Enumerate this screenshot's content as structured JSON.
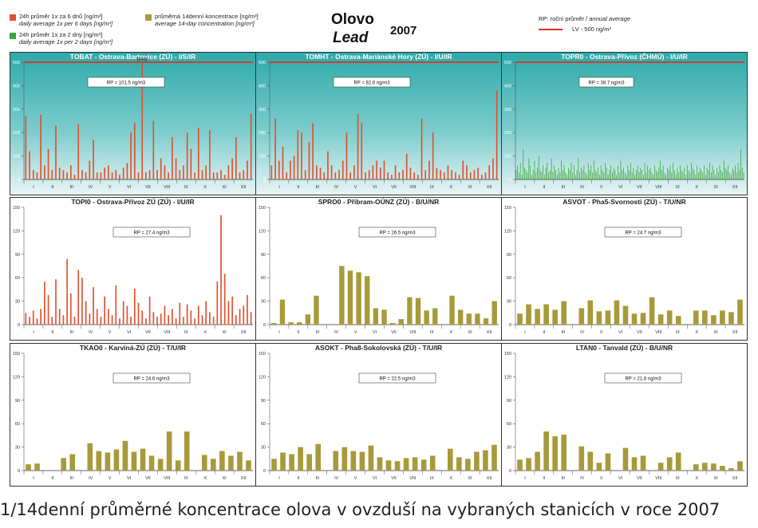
{
  "legend": {
    "daily6_cz": "24h průměr 1x za 6 dnů [ng/m³]",
    "daily6_en": "daily average 1x per 6 days [ng/m³]",
    "daily2_cz": "24h průměr 1x za 2 dny [ng/m³]",
    "daily2_en": "daily average 1x per 2 days [ng/m³]",
    "fortnight_cz": "průměrná 14denní koncentrace [ng/m³]",
    "fortnight_en": "average 14-day concentration [ng/m³]",
    "rp_cz": "RP: roční průměr / ",
    "rp_en": "annual average",
    "lv": "LV   - 500 ng/m³"
  },
  "header": {
    "title_cz": "Olovo",
    "title_en": "Lead",
    "year": "2007"
  },
  "caption": "1/14denní průměrné koncentrace olova v ovzduší na vybraných stanicích v roce 2007",
  "colors": {
    "daily6": "#e0502e",
    "daily2": "#3aa63a",
    "fortnight": "#a89a3a",
    "limit": "#e03020",
    "teal_top": "#2ea9a9",
    "teal_bottom": "#e8f4f4"
  },
  "months": [
    "I",
    "II",
    "III",
    "IV",
    "V",
    "VI",
    "VII",
    "VIII",
    "IX",
    "X",
    "XI",
    "XII"
  ],
  "chart_data": [
    {
      "type": "bar",
      "station": "TOBAT - Ostrava-Bartovice (ZÚ) - I/S/IR",
      "rp": "RP = 101.5 ng/m3",
      "series_kind": "daily6",
      "ylim": [
        0,
        500
      ],
      "yticks": [
        0,
        100,
        200,
        300,
        400,
        500
      ],
      "limit": 500,
      "background": "teal",
      "annotation": "[540]",
      "values": [
        270,
        120,
        40,
        30,
        275,
        60,
        130,
        40,
        230,
        50,
        40,
        30,
        60,
        20,
        235,
        40,
        30,
        80,
        170,
        30,
        30,
        50,
        60,
        30,
        40,
        20,
        50,
        70,
        200,
        240,
        30,
        540,
        30,
        40,
        250,
        40,
        90,
        60,
        30,
        180,
        90,
        40,
        60,
        200,
        130,
        30,
        220,
        40,
        60,
        210,
        30,
        30,
        40,
        20,
        60,
        90,
        180,
        30,
        40,
        80,
        280
      ]
    },
    {
      "type": "bar",
      "station": "TOMHT - Ostrava-Mariánské Hory (ZÚ) - I/U/IR",
      "rp": "RP = 82.6 ng/m3",
      "series_kind": "daily6",
      "ylim": [
        0,
        500
      ],
      "yticks": [
        0,
        100,
        200,
        300,
        400,
        500
      ],
      "limit": 500,
      "background": "teal",
      "values": [
        60,
        260,
        80,
        140,
        30,
        80,
        100,
        210,
        200,
        40,
        160,
        240,
        60,
        50,
        30,
        120,
        60,
        30,
        40,
        80,
        200,
        30,
        60,
        280,
        240,
        30,
        40,
        60,
        80,
        50,
        80,
        30,
        20,
        60,
        30,
        40,
        110,
        50,
        30,
        20,
        260,
        40,
        80,
        200,
        50,
        40,
        30,
        60,
        40,
        30,
        20,
        80,
        60,
        30,
        40,
        50,
        20,
        30,
        60,
        90,
        380
      ]
    },
    {
      "type": "bar",
      "station": "TOPR0 - Ostrava-Přívoz (ČHMÚ) - I/U/IR",
      "rp": "RP = 38.7 ng/m3",
      "series_kind": "daily2",
      "ylim": [
        0,
        500
      ],
      "yticks": [
        0,
        100,
        200,
        300,
        400,
        500
      ],
      "limit": 500,
      "background": "teal",
      "values": [
        40,
        60,
        30,
        70,
        20,
        130,
        50,
        40,
        30,
        90,
        60,
        20,
        40,
        80,
        30,
        50,
        100,
        40,
        30,
        60,
        20,
        50,
        70,
        30,
        40,
        90,
        30,
        60,
        40,
        20,
        50,
        30,
        80,
        40,
        60,
        30,
        20,
        50,
        40,
        70,
        30,
        60,
        20,
        40,
        90,
        30,
        50,
        40,
        60,
        30,
        20,
        70,
        40,
        60,
        30,
        80,
        40,
        30,
        50,
        20,
        60,
        40,
        30,
        70,
        50,
        20,
        40,
        60,
        30,
        50,
        40,
        20,
        60,
        30,
        80,
        40,
        50,
        30,
        20,
        60,
        40,
        70,
        30,
        50,
        20,
        40,
        60,
        30,
        50,
        40,
        20,
        70,
        30,
        60,
        40,
        50,
        30,
        20,
        60,
        40,
        30,
        50,
        80,
        40,
        60,
        30,
        20,
        50,
        40,
        60,
        30,
        70,
        40,
        20,
        50,
        30,
        60,
        40,
        30,
        50,
        20,
        60,
        40,
        30,
        70,
        50,
        40,
        20,
        60,
        30,
        50,
        40,
        30,
        60,
        20,
        50,
        40,
        70,
        30,
        60,
        40,
        20,
        50,
        30,
        60,
        40,
        30,
        80,
        50,
        40,
        60,
        30,
        20,
        50,
        40,
        60,
        30,
        70,
        40,
        130,
        50,
        30
      ]
    },
    {
      "type": "bar",
      "station": "TOPI0 - Ostrava-Přívoz ZÚ (ZÚ) - I/U/IR",
      "rp": "RP = 27.4 ng/m3",
      "series_kind": "daily6",
      "ylim": [
        0,
        150
      ],
      "yticks": [
        0,
        30,
        60,
        90,
        120,
        150
      ],
      "values": [
        15,
        10,
        18,
        8,
        20,
        55,
        38,
        10,
        58,
        20,
        12,
        84,
        40,
        10,
        70,
        60,
        30,
        14,
        48,
        20,
        10,
        36,
        20,
        12,
        50,
        8,
        30,
        24,
        10,
        46,
        28,
        18,
        8,
        36,
        16,
        10,
        14,
        24,
        12,
        20,
        8,
        28,
        10,
        26,
        18,
        8,
        24,
        12,
        30,
        16,
        10,
        55,
        140,
        65,
        30,
        36,
        12,
        20,
        24,
        38,
        16
      ]
    },
    {
      "type": "bar",
      "station": "SPRO0 - Příbram-OÚNZ (ZÚ) - B/U/NR",
      "rp": "RP = 26.5 ng/m3",
      "series_kind": "fortnight",
      "ylim": [
        0,
        150
      ],
      "yticks": [
        0,
        30,
        60,
        90,
        120,
        150
      ],
      "values": [
        2,
        32,
        3,
        3,
        13,
        37,
        null,
        null,
        75,
        69,
        67,
        62,
        21,
        19,
        2,
        7,
        35,
        34,
        18,
        21,
        null,
        37,
        19,
        14,
        14,
        8,
        30
      ]
    },
    {
      "type": "bar",
      "station": "ASVOT - Pha5-Svornosti (ZÚ) - T/U/NR",
      "rp": "RP = 24.7 ng/m3",
      "series_kind": "fortnight",
      "ylim": [
        0,
        150
      ],
      "yticks": [
        0,
        30,
        60,
        90,
        120,
        150
      ],
      "values": [
        14,
        26,
        20,
        26,
        19,
        30,
        null,
        21,
        31,
        17,
        18,
        31,
        24,
        14,
        15,
        35,
        13,
        18,
        11,
        null,
        18,
        18,
        12,
        18,
        16,
        32
      ]
    },
    {
      "type": "bar",
      "station": "TKAO0 - Karviná-ZÚ (ZÚ) - T/U/IR",
      "rp": "RP = 24.6 ng/m3",
      "series_kind": "fortnight",
      "ylim": [
        0,
        150
      ],
      "yticks": [
        0,
        30,
        60,
        90,
        120,
        150
      ],
      "values": [
        8,
        9,
        null,
        null,
        16,
        21,
        null,
        35,
        25,
        23,
        27,
        38,
        24,
        28,
        19,
        15,
        50,
        13,
        50,
        null,
        20,
        15,
        25,
        19,
        24,
        13
      ]
    },
    {
      "type": "bar",
      "station": "ASOKT - Pha8-Sokolovská (ZÚ) - T/U/IR",
      "rp": "RP = 22.5 ng/m3",
      "series_kind": "fortnight",
      "ylim": [
        0,
        150
      ],
      "yticks": [
        0,
        30,
        60,
        90,
        120,
        150
      ],
      "values": [
        15,
        23,
        21,
        30,
        21,
        34,
        null,
        25,
        30,
        25,
        24,
        32,
        17,
        13,
        12,
        16,
        17,
        14,
        19,
        null,
        28,
        17,
        15,
        24,
        26,
        33
      ]
    },
    {
      "type": "bar",
      "station": "LTAN0 - Tanvald (ZÚ) - B/U/NR",
      "rp": "RP = 21.8 ng/m3",
      "series_kind": "fortnight",
      "ylim": [
        0,
        150
      ],
      "yticks": [
        0,
        30,
        60,
        90,
        120,
        150
      ],
      "values": [
        14,
        16,
        24,
        50,
        44,
        46,
        null,
        31,
        24,
        10,
        22,
        null,
        29,
        17,
        19,
        null,
        10,
        17,
        23,
        null,
        8,
        10,
        9,
        6,
        3,
        12
      ]
    }
  ]
}
